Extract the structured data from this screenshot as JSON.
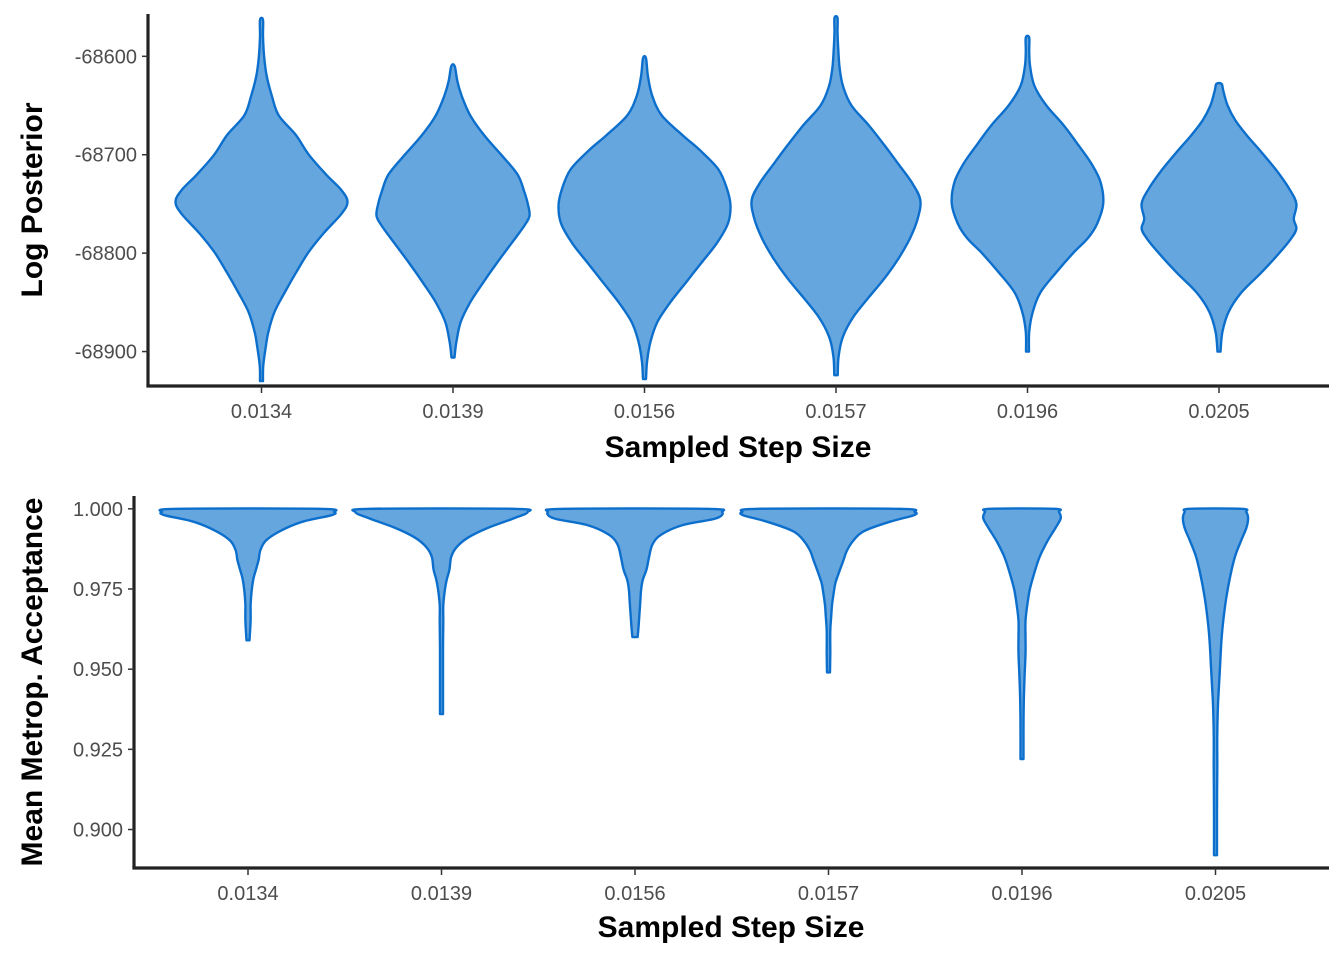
{
  "chart_data": [
    {
      "type": "violin",
      "xlabel": "Sampled Step Size",
      "ylabel": "Log Posterior",
      "categories": [
        "0.0134",
        "0.0139",
        "0.0156",
        "0.0157",
        "0.0196",
        "0.0205"
      ],
      "yticks": [
        -68900,
        -68800,
        -68700,
        -68600
      ],
      "ytick_labels": [
        "-68900",
        "-68800",
        "-68700",
        "-68600"
      ],
      "ylim": [
        -68935,
        -68557
      ],
      "grid": false,
      "colors": {
        "fill": "#66a6df",
        "outline": "#0d6fcc"
      },
      "series": [
        {
          "category": "0.0134",
          "min": -68930,
          "max": -68563,
          "profile": [
            [
              -68930,
              0.01
            ],
            [
              -68915,
              0.02
            ],
            [
              -68895,
              0.05
            ],
            [
              -68880,
              0.08
            ],
            [
              -68860,
              0.15
            ],
            [
              -68840,
              0.27
            ],
            [
              -68820,
              0.4
            ],
            [
              -68800,
              0.54
            ],
            [
              -68780,
              0.72
            ],
            [
              -68760,
              0.93
            ],
            [
              -68748,
              1.0
            ],
            [
              -68736,
              0.93
            ],
            [
              -68720,
              0.75
            ],
            [
              -68700,
              0.55
            ],
            [
              -68680,
              0.4
            ],
            [
              -68660,
              0.2
            ],
            [
              -68640,
              0.12
            ],
            [
              -68620,
              0.06
            ],
            [
              -68600,
              0.03
            ],
            [
              -68580,
              0.015
            ],
            [
              -68563,
              0.01
            ]
          ]
        },
        {
          "category": "0.0139",
          "min": -68906,
          "max": -68610,
          "profile": [
            [
              -68906,
              0.01
            ],
            [
              -68890,
              0.04
            ],
            [
              -68870,
              0.09
            ],
            [
              -68850,
              0.2
            ],
            [
              -68830,
              0.35
            ],
            [
              -68810,
              0.51
            ],
            [
              -68790,
              0.68
            ],
            [
              -68772,
              0.83
            ],
            [
              -68762,
              0.89
            ],
            [
              -68750,
              0.87
            ],
            [
              -68738,
              0.83
            ],
            [
              -68720,
              0.75
            ],
            [
              -68700,
              0.56
            ],
            [
              -68680,
              0.36
            ],
            [
              -68660,
              0.2
            ],
            [
              -68640,
              0.1
            ],
            [
              -68625,
              0.05
            ],
            [
              -68610,
              0.02
            ]
          ]
        },
        {
          "category": "0.0156",
          "min": -68928,
          "max": -68602,
          "profile": [
            [
              -68928,
              0.01
            ],
            [
              -68910,
              0.03
            ],
            [
              -68890,
              0.07
            ],
            [
              -68870,
              0.15
            ],
            [
              -68850,
              0.3
            ],
            [
              -68830,
              0.48
            ],
            [
              -68810,
              0.66
            ],
            [
              -68790,
              0.84
            ],
            [
              -68770,
              0.97
            ],
            [
              -68752,
              1.0
            ],
            [
              -68735,
              0.96
            ],
            [
              -68715,
              0.86
            ],
            [
              -68695,
              0.64
            ],
            [
              -68680,
              0.44
            ],
            [
              -68660,
              0.2
            ],
            [
              -68640,
              0.09
            ],
            [
              -68620,
              0.04
            ],
            [
              -68602,
              0.015
            ]
          ]
        },
        {
          "category": "0.0157",
          "min": -68924,
          "max": -68561,
          "profile": [
            [
              -68924,
              0.02
            ],
            [
              -68905,
              0.03
            ],
            [
              -68885,
              0.08
            ],
            [
              -68865,
              0.2
            ],
            [
              -68845,
              0.38
            ],
            [
              -68825,
              0.57
            ],
            [
              -68805,
              0.73
            ],
            [
              -68785,
              0.86
            ],
            [
              -68765,
              0.95
            ],
            [
              -68746,
              0.98
            ],
            [
              -68728,
              0.88
            ],
            [
              -68710,
              0.73
            ],
            [
              -68690,
              0.56
            ],
            [
              -68670,
              0.38
            ],
            [
              -68650,
              0.18
            ],
            [
              -68630,
              0.08
            ],
            [
              -68610,
              0.04
            ],
            [
              -68590,
              0.025
            ],
            [
              -68575,
              0.015
            ],
            [
              -68561,
              0.01
            ]
          ]
        },
        {
          "category": "0.0196",
          "min": -68900,
          "max": -68581,
          "profile": [
            [
              -68900,
              0.01
            ],
            [
              -68880,
              0.02
            ],
            [
              -68860,
              0.06
            ],
            [
              -68840,
              0.15
            ],
            [
              -68820,
              0.33
            ],
            [
              -68800,
              0.53
            ],
            [
              -68785,
              0.7
            ],
            [
              -68770,
              0.81
            ],
            [
              -68750,
              0.88
            ],
            [
              -68728,
              0.85
            ],
            [
              -68710,
              0.75
            ],
            [
              -68690,
              0.59
            ],
            [
              -68670,
              0.42
            ],
            [
              -68650,
              0.22
            ],
            [
              -68630,
              0.08
            ],
            [
              -68610,
              0.03
            ],
            [
              -68595,
              0.02
            ],
            [
              -68581,
              0.02
            ]
          ]
        },
        {
          "category": "0.0205",
          "min": -68900,
          "max": -68628,
          "profile": [
            [
              -68900,
              0.01
            ],
            [
              -68880,
              0.04
            ],
            [
              -68860,
              0.11
            ],
            [
              -68840,
              0.26
            ],
            [
              -68820,
              0.49
            ],
            [
              -68800,
              0.7
            ],
            [
              -68785,
              0.84
            ],
            [
              -68775,
              0.9
            ],
            [
              -68765,
              0.87
            ],
            [
              -68750,
              0.9
            ],
            [
              -68735,
              0.82
            ],
            [
              -68715,
              0.66
            ],
            [
              -68695,
              0.47
            ],
            [
              -68680,
              0.32
            ],
            [
              -68665,
              0.19
            ],
            [
              -68650,
              0.1
            ],
            [
              -68635,
              0.05
            ],
            [
              -68628,
              0.03
            ]
          ]
        }
      ]
    },
    {
      "type": "violin",
      "xlabel": "Sampled Step Size",
      "ylabel": "Mean Metrop. Acceptance",
      "categories": [
        "0.0134",
        "0.0139",
        "0.0156",
        "0.0157",
        "0.0196",
        "0.0205"
      ],
      "yticks": [
        0.9,
        0.925,
        0.95,
        0.975,
        1.0
      ],
      "ytick_labels": [
        "0.900",
        "0.925",
        "0.950",
        "0.975",
        "1.000"
      ],
      "ylim": [
        0.888,
        1.004
      ],
      "grid": false,
      "colors": {
        "fill": "#66a6df",
        "outline": "#0d6fcc"
      },
      "series": [
        {
          "category": "0.0134",
          "min": 0.959,
          "max": 1.0,
          "profile": [
            [
              0.959,
              0.01
            ],
            [
              0.965,
              0.03
            ],
            [
              0.97,
              0.03
            ],
            [
              0.974,
              0.04
            ],
            [
              0.978,
              0.06
            ],
            [
              0.981,
              0.09
            ],
            [
              0.984,
              0.12
            ],
            [
              0.987,
              0.14
            ],
            [
              0.99,
              0.2
            ],
            [
              0.993,
              0.36
            ],
            [
              0.996,
              0.62
            ],
            [
              0.998,
              0.95
            ],
            [
              0.999,
              0.98
            ],
            [
              1.0,
              0.82
            ]
          ]
        },
        {
          "category": "0.0139",
          "min": 0.936,
          "max": 1.0,
          "profile": [
            [
              0.936,
              0.01
            ],
            [
              0.945,
              0.01
            ],
            [
              0.955,
              0.01
            ],
            [
              0.965,
              0.02
            ],
            [
              0.97,
              0.02
            ],
            [
              0.975,
              0.04
            ],
            [
              0.978,
              0.06
            ],
            [
              0.981,
              0.09
            ],
            [
              0.985,
              0.11
            ],
            [
              0.988,
              0.17
            ],
            [
              0.991,
              0.3
            ],
            [
              0.994,
              0.52
            ],
            [
              0.997,
              0.82
            ],
            [
              0.999,
              0.98
            ],
            [
              1.0,
              0.82
            ]
          ]
        },
        {
          "category": "0.0156",
          "min": 0.96,
          "max": 1.0,
          "profile": [
            [
              0.96,
              0.03
            ],
            [
              0.963,
              0.04
            ],
            [
              0.967,
              0.05
            ],
            [
              0.971,
              0.06
            ],
            [
              0.975,
              0.07
            ],
            [
              0.978,
              0.09
            ],
            [
              0.981,
              0.13
            ],
            [
              0.985,
              0.16
            ],
            [
              0.989,
              0.2
            ],
            [
              0.992,
              0.3
            ],
            [
              0.995,
              0.55
            ],
            [
              0.997,
              0.92
            ],
            [
              0.999,
              0.99
            ],
            [
              1.0,
              0.82
            ]
          ]
        },
        {
          "category": "0.0157",
          "min": 0.949,
          "max": 1.0,
          "profile": [
            [
              0.949,
              0.01
            ],
            [
              0.955,
              0.02
            ],
            [
              0.962,
              0.02
            ],
            [
              0.966,
              0.03
            ],
            [
              0.97,
              0.04
            ],
            [
              0.974,
              0.06
            ],
            [
              0.977,
              0.08
            ],
            [
              0.981,
              0.13
            ],
            [
              0.984,
              0.17
            ],
            [
              0.987,
              0.21
            ],
            [
              0.99,
              0.28
            ],
            [
              0.993,
              0.4
            ],
            [
              0.996,
              0.7
            ],
            [
              0.998,
              0.97
            ],
            [
              0.999,
              0.98
            ],
            [
              1.0,
              0.81
            ]
          ]
        },
        {
          "category": "0.0196",
          "min": 0.922,
          "max": 1.0,
          "profile": [
            [
              0.922,
              0.01
            ],
            [
              0.93,
              0.01
            ],
            [
              0.94,
              0.02
            ],
            [
              0.948,
              0.03
            ],
            [
              0.955,
              0.04
            ],
            [
              0.96,
              0.04
            ],
            [
              0.965,
              0.04
            ],
            [
              0.97,
              0.06
            ],
            [
              0.975,
              0.09
            ],
            [
              0.98,
              0.14
            ],
            [
              0.985,
              0.2
            ],
            [
              0.99,
              0.29
            ],
            [
              0.994,
              0.38
            ],
            [
              0.997,
              0.44
            ],
            [
              0.999,
              0.42
            ],
            [
              1.0,
              0.37
            ]
          ]
        },
        {
          "category": "0.0205",
          "min": 0.892,
          "max": 1.0,
          "profile": [
            [
              0.892,
              0.005
            ],
            [
              0.905,
              0.01
            ],
            [
              0.92,
              0.02
            ],
            [
              0.93,
              0.02
            ],
            [
              0.94,
              0.03
            ],
            [
              0.95,
              0.05
            ],
            [
              0.96,
              0.07
            ],
            [
              0.97,
              0.11
            ],
            [
              0.978,
              0.16
            ],
            [
              0.985,
              0.22
            ],
            [
              0.99,
              0.29
            ],
            [
              0.994,
              0.35
            ],
            [
              0.997,
              0.37
            ],
            [
              0.999,
              0.35
            ],
            [
              1.0,
              0.3
            ]
          ]
        }
      ]
    }
  ]
}
